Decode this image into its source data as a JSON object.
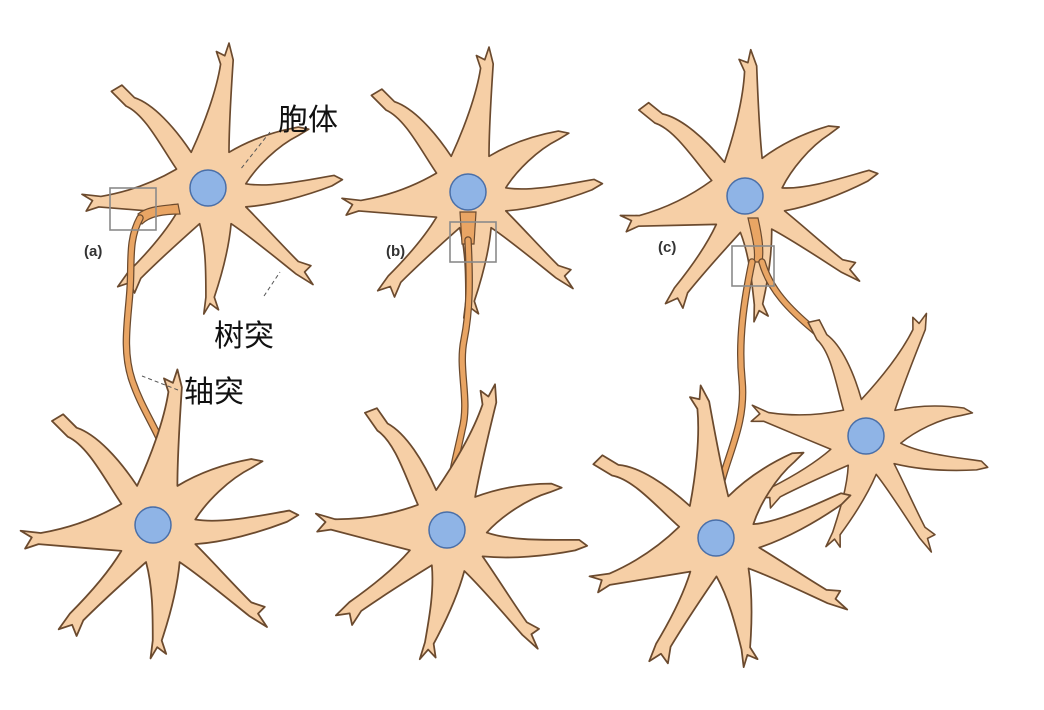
{
  "labels": {
    "soma": "胞体",
    "dendrite": "树突",
    "axon": "轴突"
  },
  "panels": [
    {
      "label": "(a)"
    },
    {
      "label": "(b)"
    },
    {
      "label": "(c)"
    }
  ],
  "colors": {
    "cell_body": "#f6cfa6",
    "cell_outline": "#6b4a2e",
    "nucleus": "#8fb4e6",
    "axon": "#e9a564",
    "highlight_box": "#8a8a8a"
  }
}
